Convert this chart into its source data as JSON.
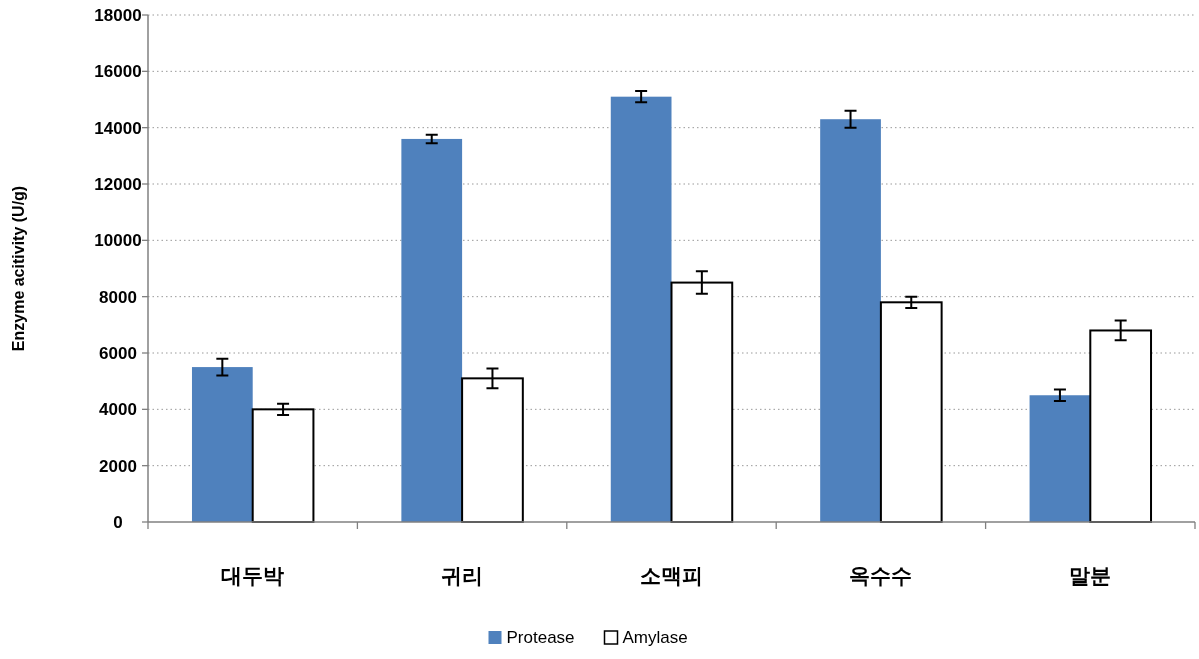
{
  "chart_data": {
    "type": "bar",
    "ylabel": "Enzyme acitivity (U/g)",
    "categories": [
      "대두박",
      "귀리",
      "소맥피",
      "옥수수",
      "말분"
    ],
    "series": [
      {
        "name": "Protease",
        "color": "#4f81bd",
        "values": [
          5500,
          13600,
          15100,
          14300,
          4500
        ],
        "errors": [
          300,
          150,
          200,
          300,
          200
        ]
      },
      {
        "name": "Amylase",
        "color": "#ffffff",
        "values": [
          4000,
          5100,
          8500,
          7800,
          6800
        ],
        "errors": [
          200,
          350,
          400,
          200,
          350
        ]
      }
    ],
    "ylim": [
      0,
      18000
    ],
    "yticks": [
      0,
      2000,
      4000,
      6000,
      8000,
      10000,
      12000,
      14000,
      16000,
      18000
    ],
    "grid": "y",
    "legend": "bottom"
  }
}
